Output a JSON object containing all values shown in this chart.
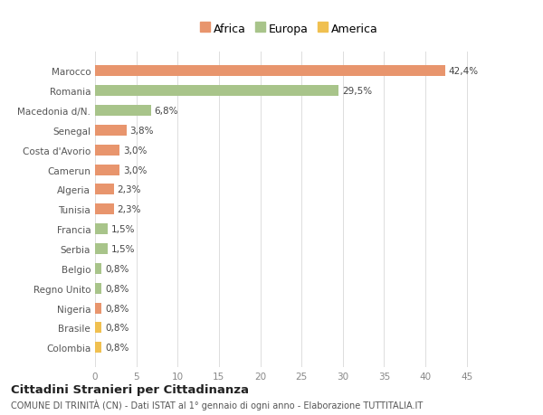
{
  "categories": [
    "Colombia",
    "Brasile",
    "Nigeria",
    "Regno Unito",
    "Belgio",
    "Serbia",
    "Francia",
    "Tunisia",
    "Algeria",
    "Camerun",
    "Costa d'Avorio",
    "Senegal",
    "Macedonia d/N.",
    "Romania",
    "Marocco"
  ],
  "values": [
    0.8,
    0.8,
    0.8,
    0.8,
    0.8,
    1.5,
    1.5,
    2.3,
    2.3,
    3.0,
    3.0,
    3.8,
    6.8,
    29.5,
    42.4
  ],
  "colors": [
    "#F0C050",
    "#F0C050",
    "#E8956D",
    "#A8C48A",
    "#A8C48A",
    "#A8C48A",
    "#A8C48A",
    "#E8956D",
    "#E8956D",
    "#E8956D",
    "#E8956D",
    "#E8956D",
    "#A8C48A",
    "#A8C48A",
    "#E8956D"
  ],
  "labels": [
    "0,8%",
    "0,8%",
    "0,8%",
    "0,8%",
    "0,8%",
    "1,5%",
    "1,5%",
    "2,3%",
    "2,3%",
    "3,0%",
    "3,0%",
    "3,8%",
    "6,8%",
    "29,5%",
    "42,4%"
  ],
  "legend": [
    {
      "label": "Africa",
      "color": "#E8956D"
    },
    {
      "label": "Europa",
      "color": "#A8C48A"
    },
    {
      "label": "America",
      "color": "#F0C050"
    }
  ],
  "xlim": [
    0,
    47
  ],
  "xticks": [
    0,
    5,
    10,
    15,
    20,
    25,
    30,
    35,
    40,
    45
  ],
  "title": "Cittadini Stranieri per Cittadinanza",
  "subtitle": "COMUNE DI TRINITÀ (CN) - Dati ISTAT al 1° gennaio di ogni anno - Elaborazione TUTTITALIA.IT",
  "background_color": "#ffffff",
  "bar_height": 0.55
}
